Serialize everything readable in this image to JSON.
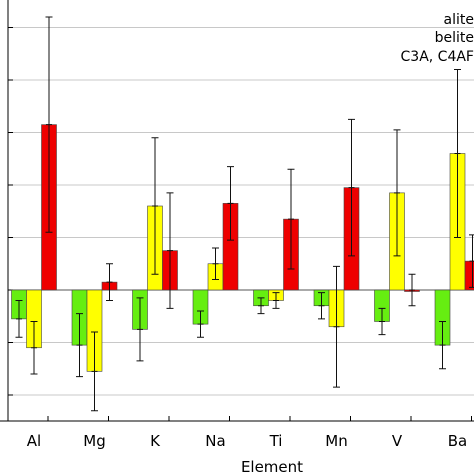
{
  "chart_data": {
    "type": "bar",
    "xlabel": "Element",
    "ylabel": "",
    "title": "",
    "categories": [
      "Al",
      "Mg",
      "K",
      "Na",
      "Ti",
      "Mn",
      "V",
      "Ba"
    ],
    "ylim": [
      -25,
      55
    ],
    "yticks": [
      -20,
      -10,
      0,
      10,
      20,
      30,
      40,
      50
    ],
    "grid": true,
    "legend_position": "top-right",
    "series": [
      {
        "name": "alite",
        "color": "#66ee11",
        "values": [
          -5.5,
          -10.5,
          -7.5,
          -6.5,
          -3,
          -3,
          -6,
          -10.5
        ],
        "errors": [
          3.5,
          6,
          6,
          2.5,
          1.5,
          2.5,
          2.5,
          4.5
        ]
      },
      {
        "name": "belite",
        "color": "#ffff00",
        "values": [
          -11,
          -15.5,
          16,
          5,
          -2,
          -7,
          18.5,
          26
        ],
        "errors": [
          5,
          7.5,
          13,
          3,
          1.5,
          11.5,
          12,
          16
        ]
      },
      {
        "name": "C3A, C4AF",
        "color": "#ee0000",
        "values": [
          31.5,
          1.5,
          7.5,
          16.5,
          13.5,
          19.5,
          0,
          5.5
        ],
        "errors": [
          20.5,
          3.5,
          11,
          7,
          9.5,
          13,
          3,
          5
        ]
      }
    ]
  }
}
